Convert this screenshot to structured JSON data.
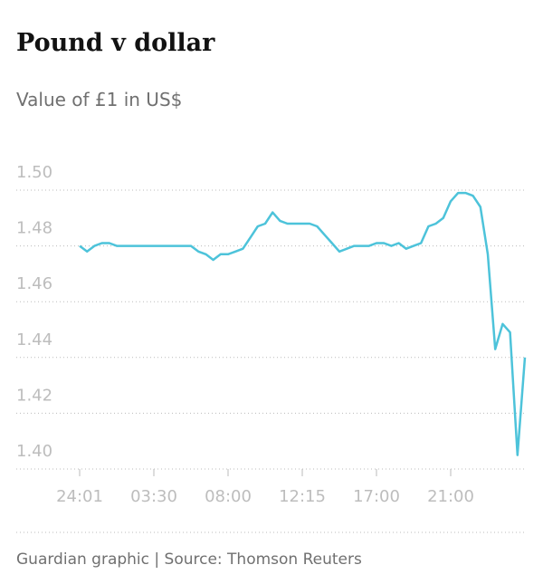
{
  "chart_data": {
    "type": "line",
    "title": "Pound v dollar",
    "subtitle": "Value of £1 in US$",
    "source": "Guardian graphic | Source: Thomson Reuters",
    "categories": [
      "24:01",
      null,
      null,
      null,
      null,
      null,
      null,
      null,
      null,
      null,
      "03:30",
      null,
      null,
      null,
      null,
      null,
      null,
      null,
      null,
      null,
      "08:00",
      null,
      null,
      null,
      null,
      null,
      null,
      null,
      null,
      null,
      "12:15",
      null,
      null,
      null,
      null,
      null,
      null,
      null,
      null,
      null,
      "17:00",
      null,
      null,
      null,
      null,
      null,
      null,
      null,
      null,
      null,
      "21:00",
      null,
      null,
      null,
      null,
      null,
      null,
      null,
      null,
      null,
      null
    ],
    "values": [
      1.48,
      1.478,
      1.48,
      1.481,
      1.481,
      1.48,
      1.48,
      1.48,
      1.48,
      1.48,
      1.48,
      1.48,
      1.48,
      1.48,
      1.48,
      1.48,
      1.478,
      1.477,
      1.475,
      1.477,
      1.477,
      1.478,
      1.479,
      1.483,
      1.487,
      1.488,
      1.492,
      1.489,
      1.488,
      1.488,
      1.488,
      1.488,
      1.487,
      1.484,
      1.481,
      1.478,
      1.479,
      1.48,
      1.48,
      1.48,
      1.481,
      1.481,
      1.48,
      1.481,
      1.479,
      1.48,
      1.481,
      1.487,
      1.488,
      1.49,
      1.496,
      1.499,
      1.499,
      1.498,
      1.494,
      1.477,
      1.443,
      1.452,
      1.449,
      1.405,
      1.44
    ],
    "color": "#4dc3da",
    "ylim": [
      1.4,
      1.5
    ],
    "yticks": [
      {
        "value": 1.4,
        "label": "1.40"
      },
      1.42,
      1.44,
      1.46,
      1.48,
      {
        "value": 1.5,
        "label": "1.50"
      }
    ],
    "grid": true
  }
}
